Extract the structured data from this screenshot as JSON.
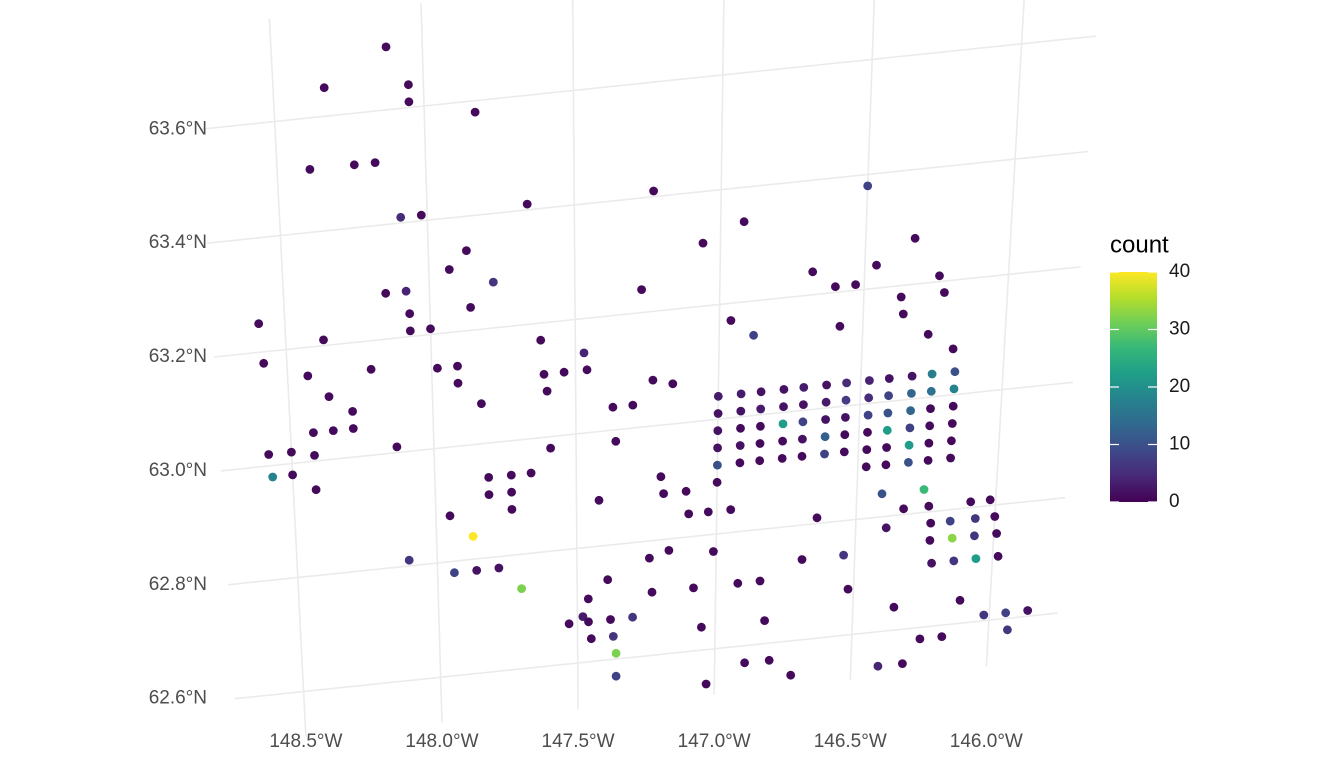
{
  "chart_data": {
    "type": "scatter",
    "legend_title": "count",
    "colormap": "viridis",
    "clim": [
      0,
      40
    ],
    "cticks": [
      0,
      10,
      20,
      30,
      40
    ],
    "grid": true,
    "xlim": [
      -148.75,
      -145.75
    ],
    "ylim": [
      62.52,
      63.78
    ],
    "xticks": [
      {
        "value": -148.5,
        "label": "148.5°W"
      },
      {
        "value": -148.0,
        "label": "148.0°W"
      },
      {
        "value": -147.5,
        "label": "147.5°W"
      },
      {
        "value": -147.0,
        "label": "147.0°W"
      },
      {
        "value": -146.5,
        "label": "146.5°W"
      },
      {
        "value": -146.0,
        "label": "146.0°W"
      }
    ],
    "yticks": [
      {
        "value": 62.6,
        "label": "62.6°N"
      },
      {
        "value": 62.8,
        "label": "62.8°N"
      },
      {
        "value": 63.0,
        "label": "63.0°N"
      },
      {
        "value": 63.2,
        "label": "63.2°N"
      },
      {
        "value": 63.4,
        "label": "63.4°N"
      },
      {
        "value": 63.6,
        "label": "63.6°N"
      }
    ],
    "x": [
      -148.12,
      -148.05,
      -148.05,
      -148.33,
      -147.83,
      -148.39,
      -148.24,
      -148.17,
      -148.09,
      -148.02,
      -147.66,
      -147.23,
      -146.5,
      -146.92,
      -147.06,
      -146.33,
      -147.87,
      -147.93,
      -146.46,
      -146.68,
      -146.6,
      -146.53,
      -146.24,
      -146.22,
      -146.37,
      -147.27,
      -147.78,
      -148.15,
      -148.08,
      -147.86,
      -148.59,
      -148.37,
      -148.07,
      -148.07,
      -148.0,
      -147.62,
      -146.96,
      -146.88,
      -146.36,
      -146.58,
      -146.27,
      -146.18,
      -148.58,
      -147.47,
      -147.98,
      -147.91,
      -148.21,
      -148.43,
      -147.54,
      -147.46,
      -147.61,
      -148.36,
      -147.91,
      -147.83,
      -148.28,
      -148.28,
      -148.35,
      -148.42,
      -148.13,
      -147.6,
      -147.23,
      -147.16,
      -147.37,
      -147.3,
      -147.36,
      -147.59,
      -148.58,
      -148.5,
      -148.42,
      -148.57,
      -148.5,
      -148.42,
      -147.81,
      -147.73,
      -147.66,
      -147.81,
      -147.73,
      -147.73,
      -147.95,
      -147.87,
      -147.42,
      -147.2,
      -147.19,
      -147.11,
      -147.1,
      -147.03,
      -146.95,
      -148.1,
      -147.94,
      -147.86,
      -147.78,
      -147.7,
      -147.24,
      -147.17,
      -147.01,
      -147.39,
      -147.23,
      -147.46,
      -147.48,
      -147.53,
      -147.46,
      -147.38,
      -147.3,
      -147.45,
      -147.37,
      -147.36,
      -147.36,
      -147.05,
      -147.03,
      -147.08,
      -146.92,
      -146.84,
      -146.82,
      -146.89,
      -146.8,
      -146.72,
      -146.69,
      -146.64,
      -146.54,
      -146.52,
      -146.4,
      -146.31,
      -146.35,
      -146.39,
      -146.25,
      -146.17,
      -146.11,
      -146.02,
      -145.94,
      -145.86,
      -145.93,
      -146.41,
      -146.33,
      -146.24,
      -146.09,
      -146.02,
      -146.23,
      -146.16,
      -146.07,
      -146.0,
      -146.23,
      -146.15,
      -146.07,
      -145.99,
      -146.22,
      -146.14,
      -146.06,
      -145.98,
      -146.26,
      -147.0,
      -146.92,
      -146.85,
      -146.77,
      -146.7,
      -146.62,
      -146.55,
      -146.47,
      -146.4,
      -146.32,
      -146.25,
      -146.17,
      -147.0,
      -146.92,
      -146.85,
      -146.77,
      -146.7,
      -146.62,
      -146.55,
      -146.47,
      -146.4,
      -146.32,
      -146.25,
      -146.17,
      -147.0,
      -146.92,
      -146.85,
      -146.77,
      -146.7,
      -146.62,
      -146.55,
      -146.47,
      -146.4,
      -146.32,
      -146.25,
      -146.17,
      -147.0,
      -146.92,
      -146.85,
      -146.77,
      -146.7,
      -146.62,
      -146.55,
      -146.47,
      -146.4,
      -146.32,
      -146.25,
      -146.17,
      -147.0,
      -146.92,
      -146.85,
      -146.77,
      -146.7,
      -146.62,
      -146.55,
      -146.47,
      -146.4,
      -146.32,
      -146.25,
      -146.17,
      -147.0,
      -146.47,
      -146.4,
      -146.32,
      -146.25,
      -146.17
    ],
    "y": [
      63.71,
      63.64,
      63.61,
      63.65,
      63.58,
      63.51,
      63.51,
      63.51,
      63.41,
      63.41,
      63.41,
      63.41,
      63.38,
      63.34,
      63.31,
      63.28,
      63.34,
      63.31,
      63.24,
      63.24,
      63.21,
      63.21,
      63.21,
      63.18,
      63.18,
      63.24,
      63.28,
      63.28,
      63.28,
      63.24,
      63.25,
      63.21,
      63.24,
      63.21,
      63.21,
      63.17,
      63.17,
      63.14,
      63.15,
      63.14,
      63.11,
      63.08,
      63.18,
      63.14,
      63.14,
      63.14,
      63.15,
      63.15,
      63.11,
      63.11,
      63.11,
      63.11,
      63.11,
      63.07,
      63.08,
      63.05,
      63.05,
      63.05,
      63.01,
      63.08,
      63.08,
      63.07,
      63.04,
      63.04,
      62.98,
      62.98,
      63.02,
      63.02,
      63.01,
      62.98,
      62.98,
      62.95,
      62.94,
      62.94,
      62.94,
      62.91,
      62.91,
      62.88,
      62.88,
      62.84,
      62.88,
      62.91,
      62.88,
      62.88,
      62.84,
      62.84,
      62.84,
      62.81,
      62.78,
      62.78,
      62.78,
      62.74,
      62.77,
      62.78,
      62.77,
      62.74,
      62.71,
      62.71,
      62.68,
      62.67,
      62.67,
      62.67,
      62.67,
      62.64,
      62.64,
      62.61,
      62.57,
      62.64,
      62.54,
      62.71,
      62.71,
      62.71,
      62.64,
      62.57,
      62.57,
      62.54,
      62.74,
      62.81,
      62.74,
      62.68,
      62.54,
      62.54,
      62.64,
      62.78,
      62.58,
      62.58,
      62.64,
      62.61,
      62.61,
      62.61,
      62.58,
      62.84,
      62.81,
      62.81,
      62.81,
      62.81,
      62.78,
      62.78,
      62.78,
      62.78,
      62.75,
      62.75,
      62.75,
      62.75,
      62.71,
      62.71,
      62.71,
      62.71,
      62.84,
      63.04,
      63.04,
      63.04,
      63.04,
      63.04,
      63.04,
      63.04,
      63.04,
      63.04,
      63.04,
      63.04,
      63.04,
      63.01,
      63.01,
      63.01,
      63.01,
      63.01,
      63.01,
      63.01,
      63.01,
      63.01,
      63.01,
      63.01,
      63.01,
      62.98,
      62.98,
      62.98,
      62.98,
      62.98,
      62.98,
      62.98,
      62.98,
      62.98,
      62.98,
      62.98,
      62.98,
      62.95,
      62.95,
      62.95,
      62.95,
      62.95,
      62.95,
      62.95,
      62.95,
      62.95,
      62.95,
      62.95,
      62.95,
      62.92,
      62.92,
      62.92,
      62.92,
      62.92,
      62.92,
      62.92,
      62.92,
      62.92,
      62.92,
      62.92,
      62.92,
      62.89,
      62.89,
      62.89,
      62.89,
      62.89,
      62.89
    ],
    "values": [
      1,
      1,
      1,
      1,
      1,
      1,
      1,
      1,
      5,
      1,
      1,
      1,
      8,
      1,
      1,
      1,
      1,
      1,
      1,
      1,
      1,
      1,
      1,
      1,
      1,
      1,
      6,
      1,
      4,
      1,
      1,
      1,
      1,
      1,
      1,
      1,
      1,
      8,
      1,
      1,
      1,
      1,
      1,
      4,
      1,
      1,
      1,
      1,
      1,
      1,
      1,
      1,
      1,
      1,
      1,
      1,
      1,
      1,
      1,
      1,
      1,
      1,
      1,
      1,
      1,
      1,
      1,
      1,
      1,
      18,
      1,
      1,
      1,
      1,
      1,
      1,
      1,
      1,
      1,
      40,
      1,
      1,
      1,
      1,
      1,
      1,
      1,
      6,
      8,
      2,
      2,
      32,
      1,
      1,
      1,
      1,
      1,
      1,
      3,
      1,
      1,
      1,
      6,
      1,
      6,
      32,
      8,
      1,
      1,
      1,
      1,
      1,
      1,
      1,
      1,
      1,
      1,
      1,
      6,
      1,
      4,
      1,
      1,
      2,
      1,
      1,
      1,
      6,
      8,
      2,
      6,
      10,
      1,
      1,
      1,
      1,
      1,
      8,
      6,
      1,
      1,
      33,
      6,
      1,
      2,
      6,
      22,
      1,
      27,
      3,
      3,
      2,
      2,
      3,
      2,
      5,
      4,
      2,
      2,
      17,
      10,
      2,
      2,
      3,
      2,
      2,
      3,
      7,
      5,
      8,
      13,
      15,
      18,
      2,
      1,
      1,
      22,
      8,
      2,
      2,
      8,
      10,
      13,
      1,
      1,
      2,
      2,
      1,
      1,
      2,
      12,
      1,
      1,
      22,
      8,
      1,
      1,
      10,
      1,
      1,
      1,
      1,
      8,
      1,
      1,
      1,
      22,
      1,
      1,
      1,
      1,
      1,
      10,
      1,
      1
    ]
  }
}
